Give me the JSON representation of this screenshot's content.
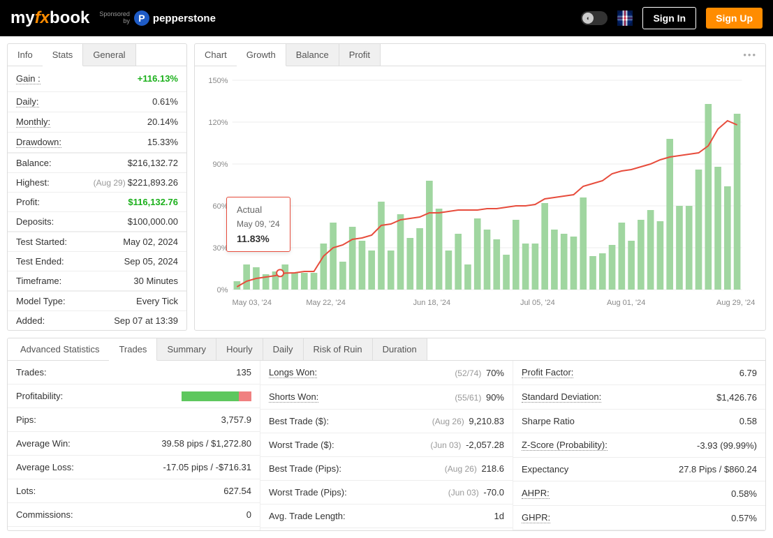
{
  "header": {
    "logo_my": "my",
    "logo_fx": "fx",
    "logo_book": "book",
    "sponsored": "Sponsored",
    "by": "by",
    "sponsor_name": "pepperstone",
    "signin": "Sign In",
    "signup": "Sign Up"
  },
  "left_tabs": {
    "info": "Info",
    "stats": "Stats",
    "general": "General"
  },
  "stats": {
    "gain_label": "Gain :",
    "gain_value": "+116.13%",
    "daily_label": "Daily:",
    "daily_value": "0.61%",
    "monthly_label": "Monthly:",
    "monthly_value": "20.14%",
    "drawdown_label": "Drawdown:",
    "drawdown_value": "15.33%",
    "balance_label": "Balance:",
    "balance_value": "$216,132.72",
    "highest_label": "Highest:",
    "highest_note": "(Aug 29)",
    "highest_value": "$221,893.26",
    "profit_label": "Profit:",
    "profit_value": "$116,132.76",
    "deposits_label": "Deposits:",
    "deposits_value": "$100,000.00",
    "test_started_label": "Test Started:",
    "test_started_value": "May 02, 2024",
    "test_ended_label": "Test Ended:",
    "test_ended_value": "Sep 05, 2024",
    "timeframe_label": "Timeframe:",
    "timeframe_value": "30 Minutes",
    "model_label": "Model Type:",
    "model_value": "Every Tick",
    "added_label": "Added:",
    "added_value": "Sep 07 at 13:39"
  },
  "chart_tabs": {
    "chart": "Chart",
    "growth": "Growth",
    "balance": "Balance",
    "profit": "Profit"
  },
  "chart": {
    "y_labels": [
      "0%",
      "30%",
      "60%",
      "90%",
      "120%",
      "150%"
    ],
    "x_labels": [
      "May 03, '24",
      "May 22, '24",
      "Jun 18, '24",
      "Jul 05, '24",
      "Aug 01, '24",
      "Aug 29, '24"
    ],
    "x_positions": [
      0,
      0.145,
      0.355,
      0.565,
      0.735,
      0.95
    ],
    "bar_color": "#a0d6a0",
    "line_color": "#e74c3c",
    "bars": [
      6,
      18,
      16,
      11,
      13,
      18,
      12,
      12,
      12,
      33,
      48,
      20,
      45,
      35,
      28,
      63,
      28,
      54,
      37,
      44,
      78,
      58,
      28,
      40,
      18,
      51,
      43,
      36,
      25,
      50,
      33,
      33,
      62,
      43,
      40,
      38,
      66,
      24,
      26,
      32,
      48,
      35,
      50,
      57,
      49,
      108,
      60,
      60,
      86,
      133,
      88,
      74,
      126
    ],
    "line": [
      2,
      6,
      8,
      9,
      10,
      11.83,
      12,
      13,
      13,
      24,
      30,
      32,
      36,
      37,
      39,
      46,
      47,
      50,
      51,
      52,
      55,
      55,
      56,
      57,
      57,
      57,
      58,
      58,
      59,
      60,
      60,
      61,
      65,
      66,
      67,
      68,
      74,
      76,
      78,
      83,
      85,
      86,
      88,
      90,
      93,
      95,
      96,
      97,
      98,
      103,
      115,
      121,
      118
    ],
    "tooltip": {
      "title": "Actual",
      "date": "May 09, '24",
      "value": "11.83%",
      "marker_x_pc": 0.094,
      "marker_y": 11.83
    }
  },
  "adv_tabs": {
    "adv": "Advanced Statistics",
    "trades": "Trades",
    "summary": "Summary",
    "hourly": "Hourly",
    "daily": "Daily",
    "risk": "Risk of Ruin",
    "duration": "Duration"
  },
  "col1": {
    "trades_l": "Trades:",
    "trades_v": "135",
    "prof_l": "Profitability:",
    "prof_green_pc": 82,
    "prof_red_pc": 18,
    "pips_l": "Pips:",
    "pips_v": "3,757.9",
    "avgwin_l": "Average Win:",
    "avgwin_v": "39.58 pips / $1,272.80",
    "avgloss_l": "Average Loss:",
    "avgloss_v": "-17.05 pips / -$716.31",
    "lots_l": "Lots:",
    "lots_v": "627.54",
    "comm_l": "Commissions:",
    "comm_v": "0"
  },
  "col2": {
    "longs_l": "Longs Won:",
    "longs_note": "(52/74)",
    "longs_v": "70%",
    "shorts_l": "Shorts Won:",
    "shorts_note": "(55/61)",
    "shorts_v": "90%",
    "best_l": "Best Trade ($):",
    "best_note": "(Aug 26)",
    "best_v": "9,210.83",
    "worst_l": "Worst Trade ($):",
    "worst_note": "(Jun 03)",
    "worst_v": "-2,057.28",
    "bestp_l": "Best Trade (Pips):",
    "bestp_note": "(Aug 26)",
    "bestp_v": "218.6",
    "worstp_l": "Worst Trade (Pips):",
    "worstp_note": "(Jun 03)",
    "worstp_v": "-70.0",
    "avglen_l": "Avg. Trade Length:",
    "avglen_v": "1d"
  },
  "col3": {
    "pf_l": "Profit Factor:",
    "pf_v": "6.79",
    "sd_l": "Standard Deviation:",
    "sd_v": "$1,426.76",
    "sr_l": "Sharpe Ratio",
    "sr_v": "0.58",
    "zs_l": "Z-Score (Probability):",
    "zs_v": "-3.93 (99.99%)",
    "exp_l": "Expectancy",
    "exp_v": "27.8 Pips / $860.24",
    "ahpr_l": "AHPR:",
    "ahpr_v": "0.58%",
    "ghpr_l": "GHPR:",
    "ghpr_v": "0.57%"
  }
}
